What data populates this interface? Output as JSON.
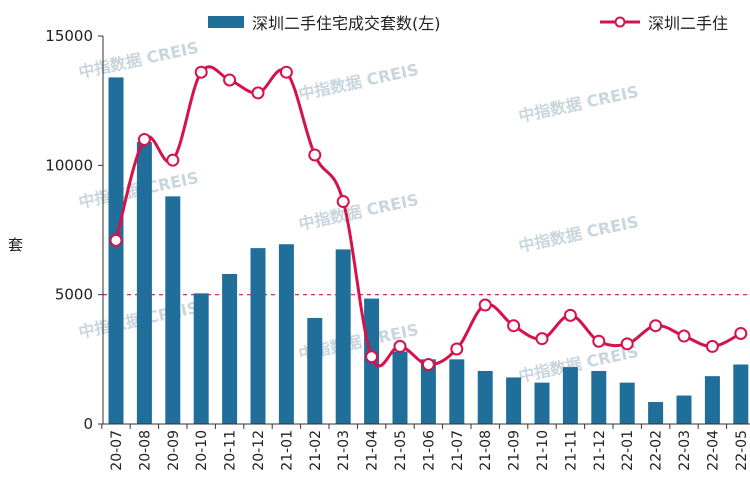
{
  "chart_data": {
    "type": "bar",
    "categories": [
      "20-07",
      "20-08",
      "20-09",
      "20-10",
      "20-11",
      "20-12",
      "21-01",
      "21-02",
      "21-03",
      "21-04",
      "21-05",
      "21-06",
      "21-07",
      "21-08",
      "21-09",
      "21-10",
      "21-11",
      "21-12",
      "22-01",
      "22-02",
      "22-03",
      "22-04",
      "22-05"
    ],
    "series": [
      {
        "name": "深圳二手住宅成交套数(左)",
        "type": "bar",
        "values": [
          13400,
          10900,
          8800,
          5050,
          5800,
          6800,
          6950,
          4100,
          6750,
          4850,
          2800,
          2500,
          2500,
          2050,
          1800,
          1600,
          2200,
          2050,
          1600,
          850,
          1100,
          1850,
          2300
        ]
      },
      {
        "name": "深圳二手住",
        "type": "line",
        "values": [
          7100,
          11000,
          10200,
          13600,
          13300,
          12800,
          13600,
          10400,
          8600,
          2600,
          3000,
          2300,
          2900,
          4600,
          3800,
          3300,
          4200,
          3200,
          3100,
          3800,
          3400,
          3000,
          3500
        ]
      }
    ],
    "ylabel": "套",
    "ylim": [
      0,
      15000
    ],
    "yticks": [
      0,
      5000,
      10000,
      15000
    ],
    "reference_line": 5000,
    "colors": {
      "bar": "#1f6f9a",
      "line": "#d6124a",
      "reference": "#d6124a",
      "marker_fill": "#ffffff"
    },
    "legend_position": "top",
    "grid": false
  },
  "watermark_text": "中指数据 CREIS"
}
